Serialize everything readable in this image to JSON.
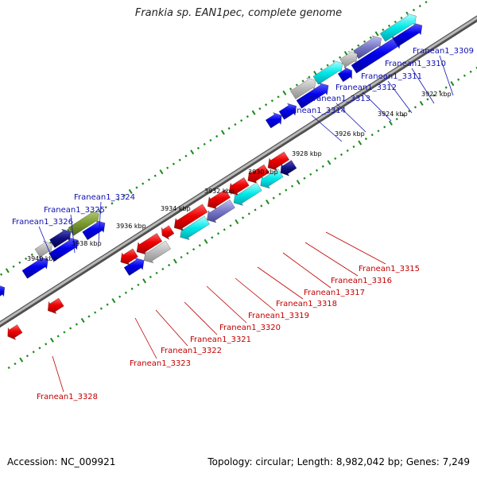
{
  "title": "Frankia sp. EAN1pec, complete genome",
  "footer": {
    "accession": "Accession: NC_009921",
    "topology": "Topology: circular; Length: 8,982,042 bp; Genes: 7,249"
  },
  "ticks": [
    "3922 kbp",
    "3924 kbp",
    "3926 kbp",
    "3928 kbp",
    "3930 kbp",
    "3932 kbp",
    "3934 kbp",
    "3936 kbp",
    "3938 kbp",
    "3940 kbp"
  ],
  "genes_top": [
    "Franean1_3309",
    "Franean1_3310",
    "Franean1_3311",
    "Franean1_3312",
    "Franean1_3313",
    "Franean1_3314",
    "Franean1_3324",
    "Franean1_3325",
    "Franean1_3326"
  ],
  "genes_bottom": [
    "Franean1_3315",
    "Franean1_3316",
    "Franean1_3317",
    "Franean1_3318",
    "Franean1_3319",
    "Franean1_3320",
    "Franean1_3321",
    "Franean1_3322",
    "Franean1_3323",
    "Franean1_3328"
  ],
  "colors": {
    "forward_gene": "#0000ee",
    "reverse_gene": "#ee0000",
    "backbone": "#888888",
    "tick": "#1a8a1a",
    "label_top": "#1010b0",
    "label_bottom": "#c00000"
  }
}
